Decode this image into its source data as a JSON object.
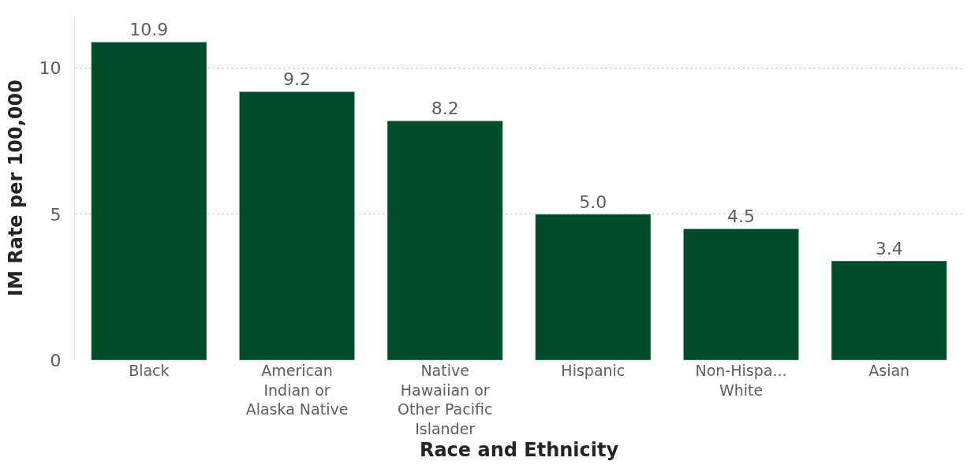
{
  "chart_data": {
    "type": "bar",
    "categories": [
      "Black",
      "American Indian or Alaska Native",
      "Native Hawaiian or Other Pacific Islander",
      "Hispanic",
      "Non-Hispa... White",
      "Asian"
    ],
    "values": [
      10.9,
      9.2,
      8.2,
      5.0,
      4.5,
      3.4
    ],
    "value_labels": [
      "10.9",
      "9.2",
      "8.2",
      "5.0",
      "4.5",
      "3.4"
    ],
    "color": "#004b2a",
    "xlabel": "Race and Ethnicity",
    "ylabel": "IM Rate per 100,000",
    "ylim": [
      0,
      11.8
    ],
    "yticks": [
      0,
      5,
      10
    ],
    "grid": "y",
    "legend": false
  }
}
